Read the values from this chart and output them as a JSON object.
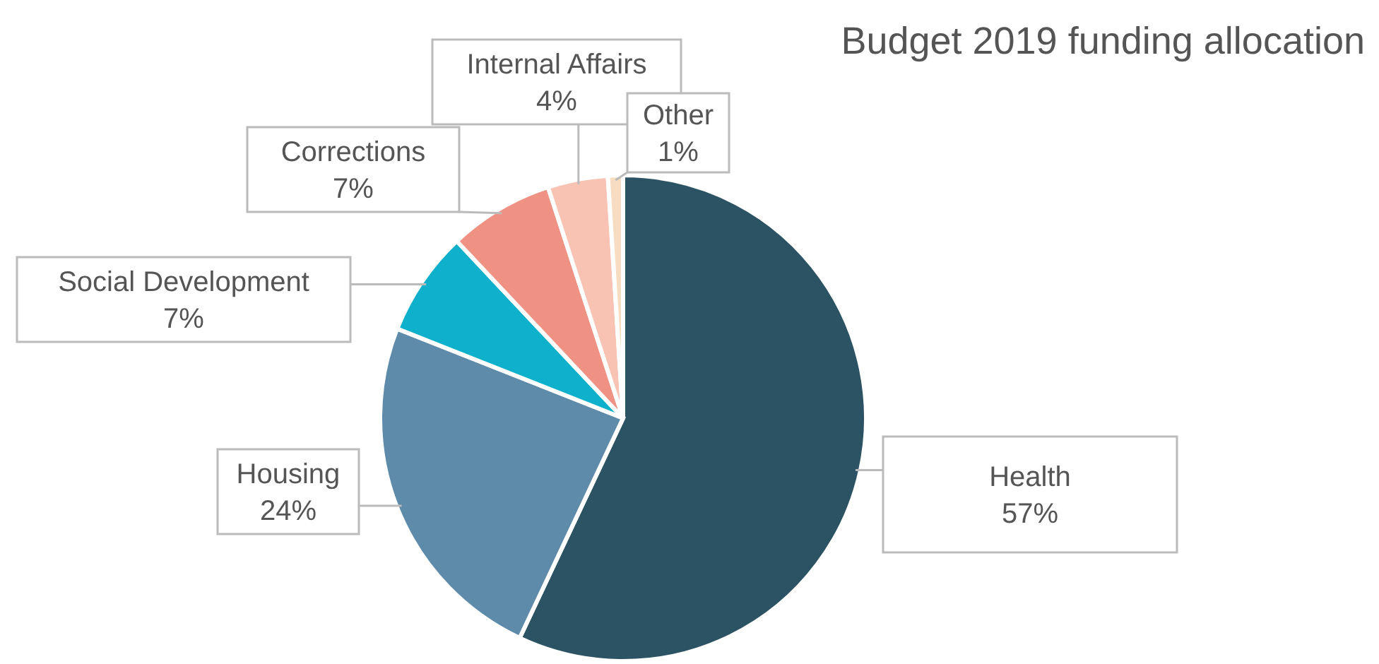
{
  "chart_data": {
    "type": "pie",
    "title": "Budget 2019 funding allocation",
    "categories": [
      "Health",
      "Housing",
      "Social Development",
      "Corrections",
      "Internal Affairs",
      "Other"
    ],
    "values": [
      57,
      24,
      7,
      7,
      4,
      1
    ],
    "value_labels": [
      "57%",
      "24%",
      "7%",
      "7%",
      "4%",
      "1%"
    ],
    "colors": [
      "#2c5364",
      "#5f8bab",
      "#0fb0cb",
      "#ef9283",
      "#f9c3b3",
      "#f6dcc0"
    ]
  }
}
